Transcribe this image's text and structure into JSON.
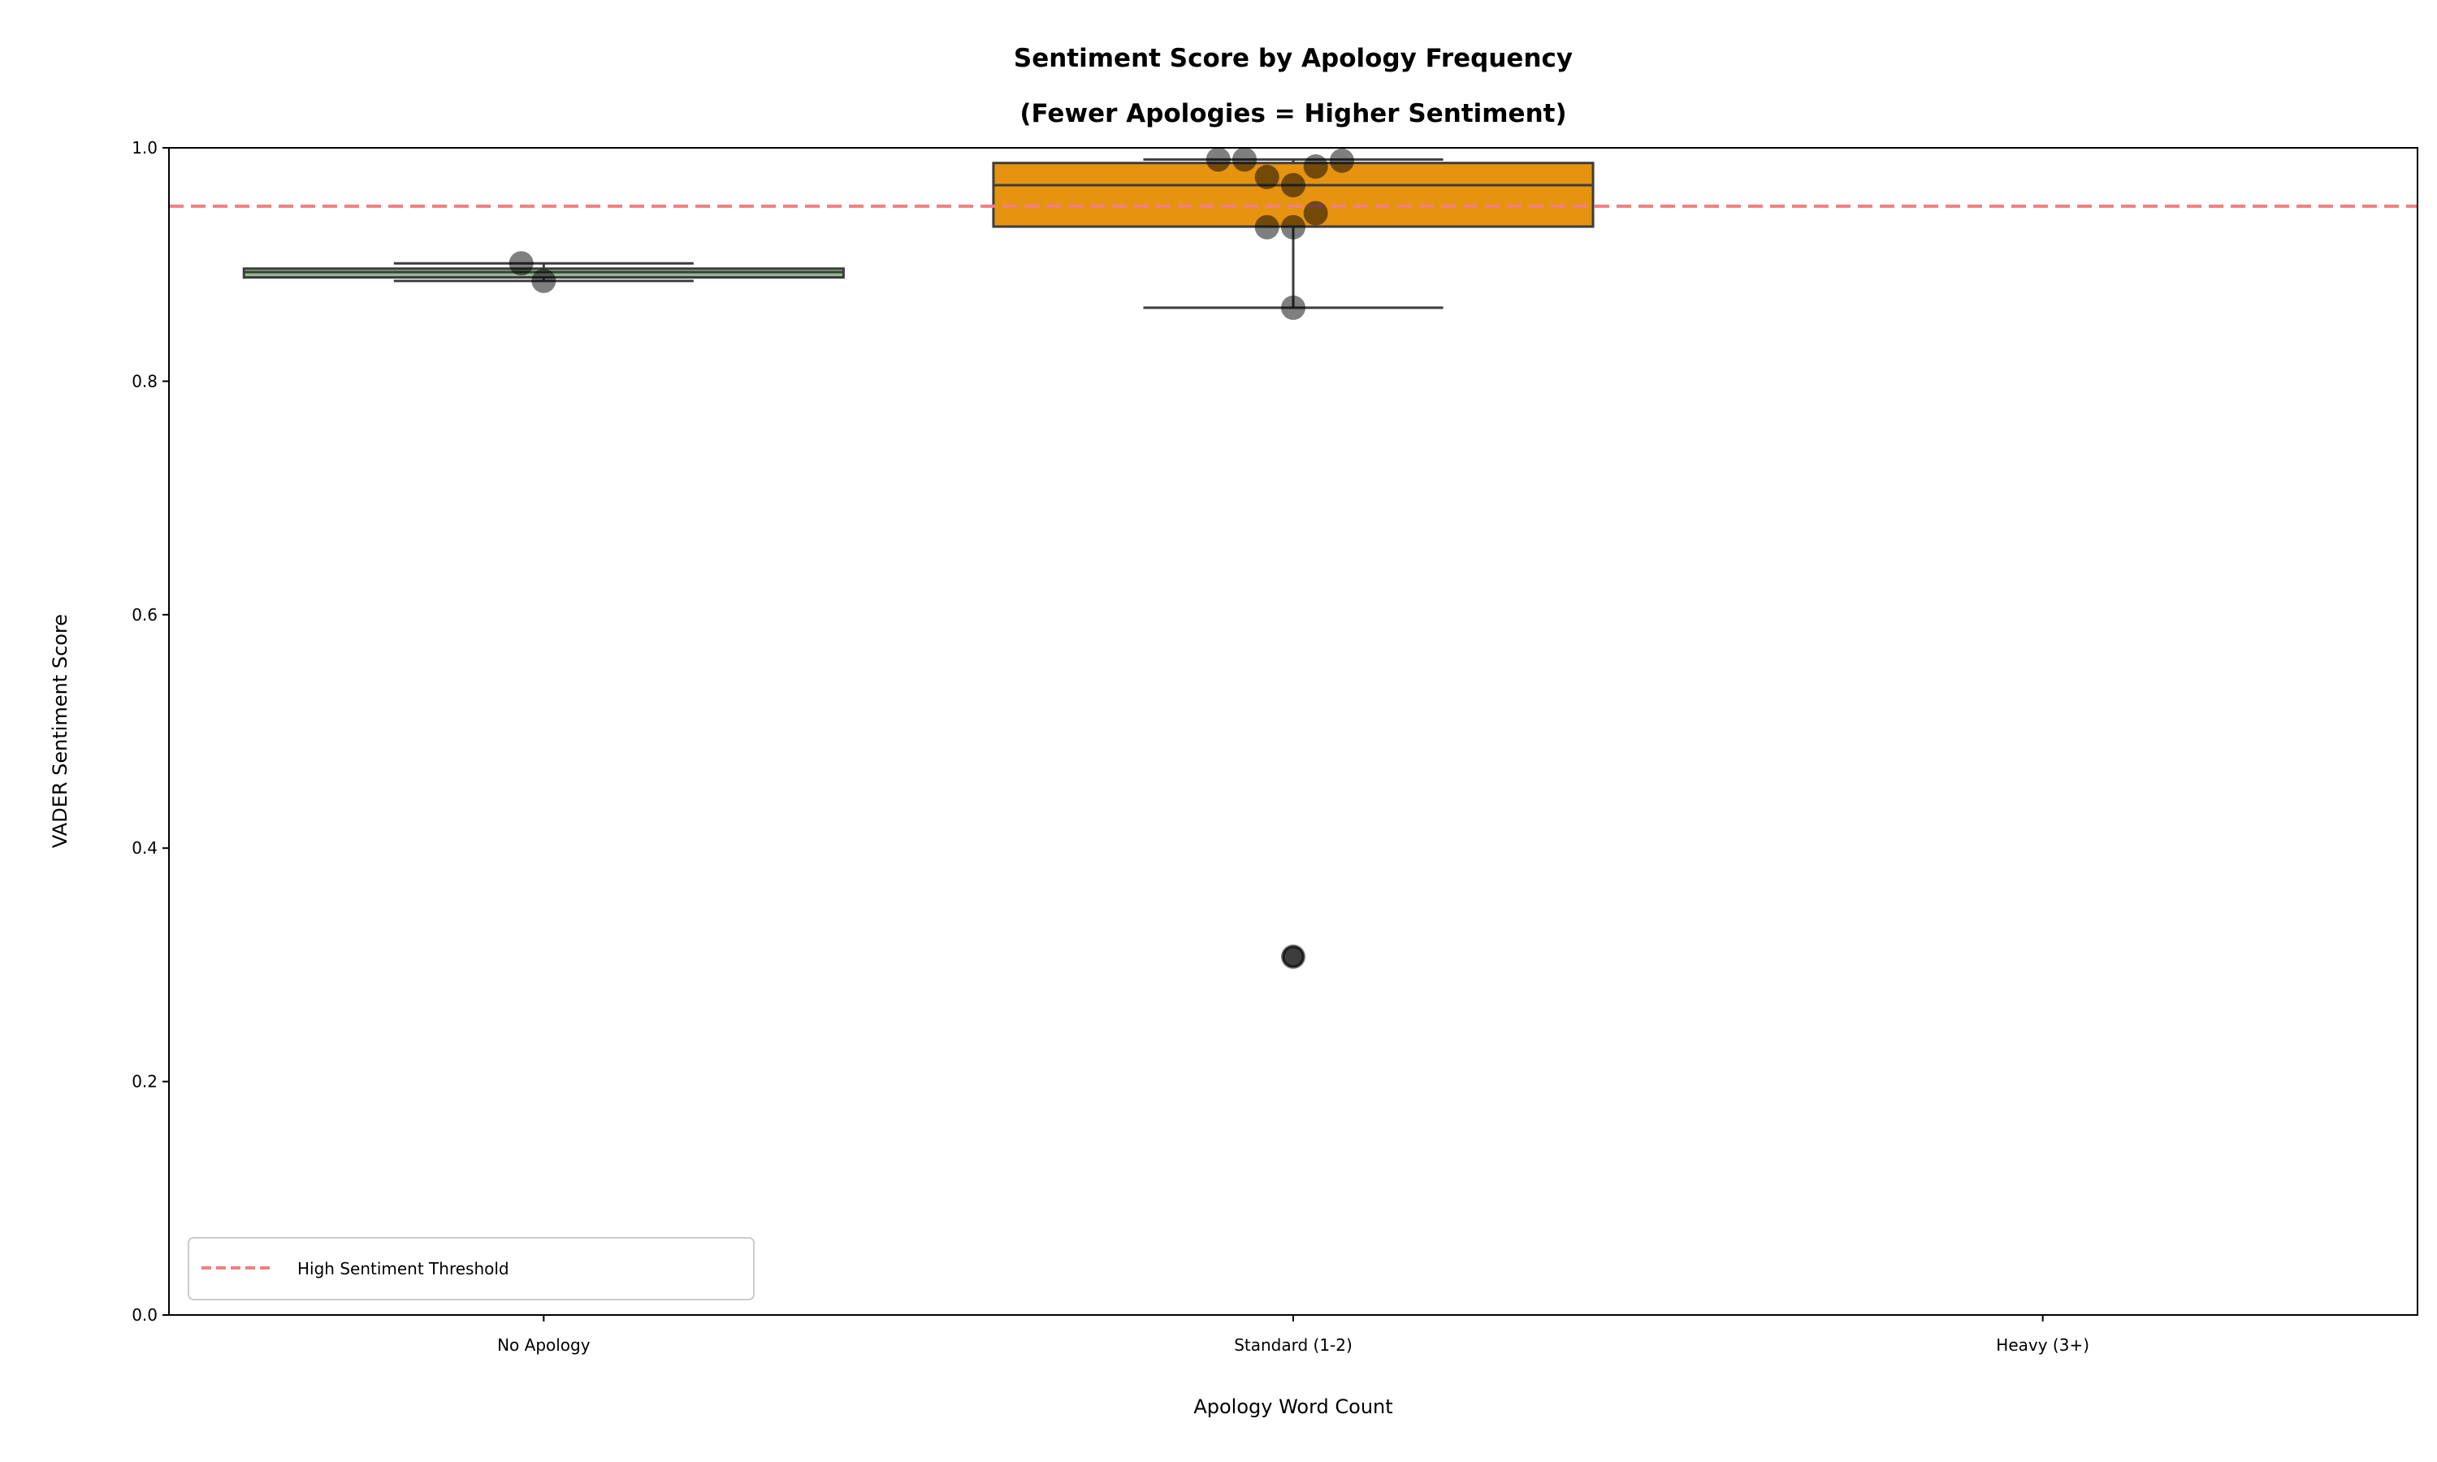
{
  "chart_data": {
    "type": "box",
    "title_line1": "Sentiment Score by Apology Frequency",
    "title_line2": "(Fewer Apologies = Higher Sentiment)",
    "xlabel": "Apology Word Count",
    "ylabel": "VADER Sentiment Score",
    "categories": [
      "No Apology",
      "Standard (1-2)",
      "Heavy (3+)"
    ],
    "ylim": [
      0,
      1.0
    ],
    "yticks": [
      {
        "value": 0.0,
        "label": "0.0"
      },
      {
        "value": 0.2,
        "label": "0.2"
      },
      {
        "value": 0.4,
        "label": "0.4"
      },
      {
        "value": 0.6,
        "label": "0.6"
      },
      {
        "value": 0.8,
        "label": "0.8"
      },
      {
        "value": 1.0,
        "label": "1.0"
      }
    ],
    "grid": false,
    "boxes": [
      {
        "category": "No Apology",
        "color": "#8fbc8f",
        "q1": 0.889,
        "median": 0.8935,
        "q3": 0.8965,
        "whisker_low": 0.886,
        "whisker_high": 0.901,
        "outliers": []
      },
      {
        "category": "Standard (1-2)",
        "color": "#e69310",
        "q1": 0.9325,
        "median": 0.968,
        "q3": 0.987,
        "whisker_low": 0.863,
        "whisker_high": 0.99,
        "outliers": [
          0.307
        ]
      }
    ],
    "points": [
      {
        "category": "No Apology",
        "jitter": -0.03,
        "y": 0.901
      },
      {
        "category": "No Apology",
        "jitter": 0.0,
        "y": 0.886
      },
      {
        "category": "Standard (1-2)",
        "jitter": -0.1,
        "y": 0.99
      },
      {
        "category": "Standard (1-2)",
        "jitter": -0.065,
        "y": 0.99
      },
      {
        "category": "Standard (1-2)",
        "jitter": 0.065,
        "y": 0.989
      },
      {
        "category": "Standard (1-2)",
        "jitter": 0.03,
        "y": 0.984
      },
      {
        "category": "Standard (1-2)",
        "jitter": -0.035,
        "y": 0.975
      },
      {
        "category": "Standard (1-2)",
        "jitter": 0.0,
        "y": 0.968
      },
      {
        "category": "Standard (1-2)",
        "jitter": 0.03,
        "y": 0.944
      },
      {
        "category": "Standard (1-2)",
        "jitter": -0.035,
        "y": 0.932
      },
      {
        "category": "Standard (1-2)",
        "jitter": 0.0,
        "y": 0.932
      },
      {
        "category": "Standard (1-2)",
        "jitter": 0.0,
        "y": 0.863
      },
      {
        "category": "Standard (1-2)",
        "jitter": 0.0,
        "y": 0.307
      }
    ],
    "threshold": {
      "value": 0.95,
      "label": "High Sentiment Threshold",
      "color": "#f08080"
    },
    "legend_placement": "lower-left"
  }
}
